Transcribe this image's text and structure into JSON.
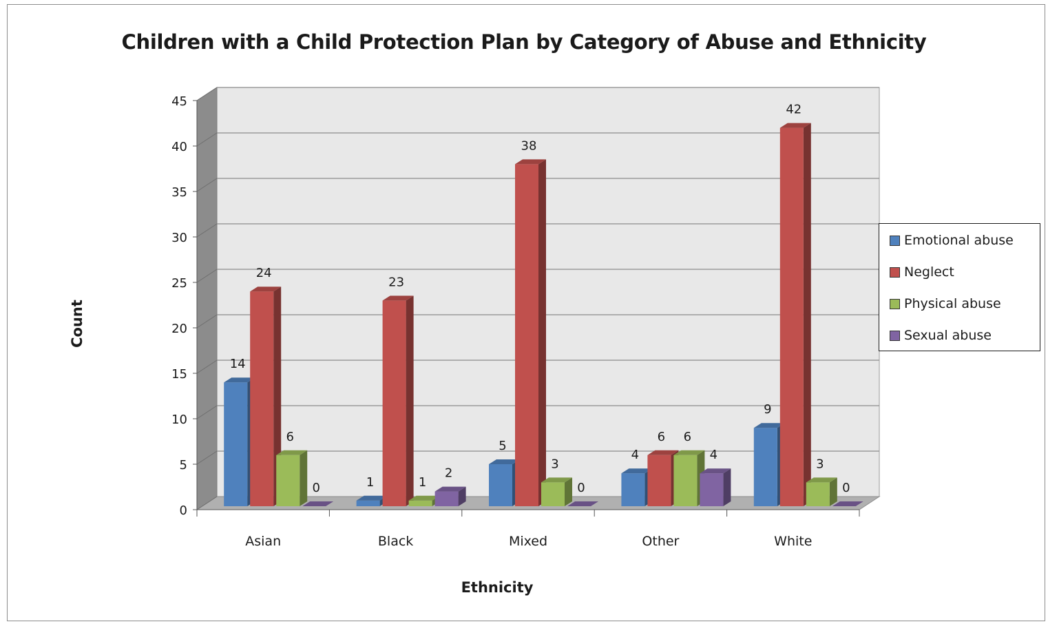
{
  "chart_data": {
    "type": "bar",
    "title": "Children with a Child Protection Plan by Category of Abuse and Ethnicity",
    "xlabel": "Ethnicity",
    "ylabel": "Count",
    "categories": [
      "Asian",
      "Black",
      "Mixed",
      "Other",
      "White"
    ],
    "series": [
      {
        "name": "Emotional abuse",
        "values": [
          14,
          1,
          5,
          4,
          9
        ],
        "color": "#4f81bd"
      },
      {
        "name": "Neglect",
        "values": [
          24,
          23,
          38,
          6,
          42
        ],
        "color": "#c0504d"
      },
      {
        "name": "Physical abuse",
        "values": [
          6,
          1,
          3,
          6,
          3
        ],
        "color": "#9bbb59"
      },
      {
        "name": "Sexual abuse",
        "values": [
          0,
          2,
          0,
          4,
          0
        ],
        "color": "#8064a2"
      }
    ],
    "ylim": [
      0,
      45
    ],
    "yticks": [
      0,
      5,
      10,
      15,
      20,
      25,
      30,
      35,
      40,
      45
    ],
    "grid": true,
    "style": "3d-clustered-column",
    "legend_position": "right"
  }
}
